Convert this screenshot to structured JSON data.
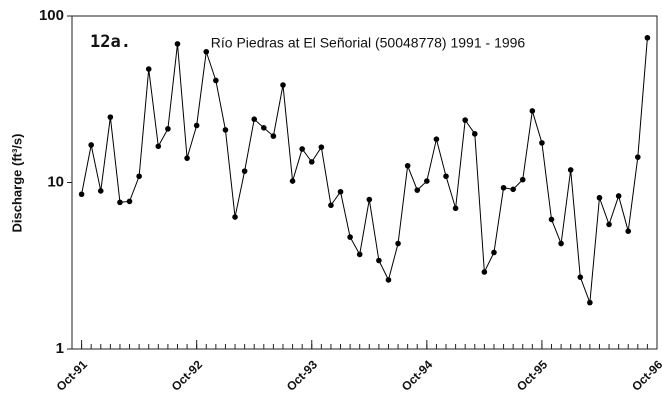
{
  "chart_data": {
    "type": "line",
    "title": "Río Piedras at El Señorial (50048778) 1991 - 1996",
    "annotation": "12a.",
    "y_label": "Discharge (ft³/s)",
    "x": [
      0,
      1,
      2,
      3,
      4,
      5,
      6,
      7,
      8,
      9,
      10,
      11,
      12,
      13,
      14,
      15,
      16,
      17,
      18,
      19,
      20,
      21,
      22,
      23,
      24,
      25,
      26,
      27,
      28,
      29,
      30,
      31,
      32,
      33,
      34,
      35,
      36,
      37,
      38,
      39,
      40,
      41,
      42,
      43,
      44,
      45,
      46,
      47,
      48,
      49,
      50,
      51,
      52,
      53,
      54,
      55,
      56,
      57,
      58,
      59
    ],
    "series": [
      {
        "color": "#000000",
        "values": [
          8.5,
          16.8,
          8.9,
          24.7,
          7.6,
          7.7,
          10.9,
          48,
          16.5,
          21,
          68,
          14,
          22,
          61,
          41,
          20.7,
          6.2,
          11.7,
          24,
          21.3,
          19,
          38.5,
          10.2,
          15.9,
          13.3,
          16.3,
          7.3,
          8.8,
          4.7,
          3.7,
          7.9,
          3.4,
          2.6,
          4.3,
          12.6,
          9.0,
          10.2,
          18.2,
          10.9,
          7.0,
          23.7,
          19.6,
          2.9,
          3.8,
          9.3,
          9.1,
          10.4,
          26.9,
          17.3,
          6.0,
          4.3,
          11.9,
          2.7,
          1.9,
          8.1,
          5.6,
          8.3,
          5.1,
          14.2,
          74
        ]
      }
    ],
    "xlim": [
      -1,
      60
    ],
    "xticks": [
      {
        "value": 0,
        "label": "Oct-91"
      },
      {
        "value": 12,
        "label": "Oct-92"
      },
      {
        "value": 24,
        "label": "Oct-93"
      },
      {
        "value": 36,
        "label": "Oct-94"
      },
      {
        "value": 48,
        "label": "Oct-95"
      },
      {
        "value": 60,
        "label": "Oct-96"
      }
    ],
    "ylim": [
      1,
      100
    ],
    "yticks": [
      1,
      10,
      100
    ],
    "y_scale": "log"
  }
}
